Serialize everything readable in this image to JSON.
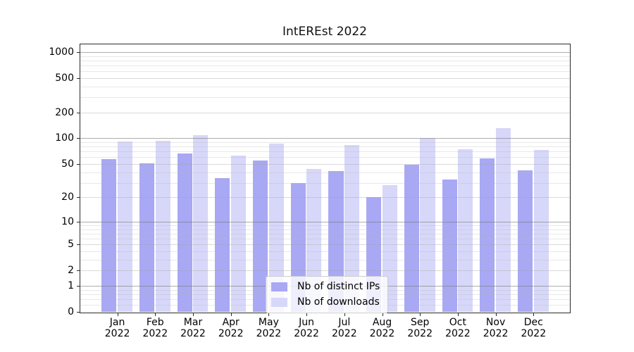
{
  "title": "IntEREst 2022",
  "chart_data": {
    "type": "bar",
    "title": "IntEREst 2022",
    "x_categories": [
      "Jan",
      "Feb",
      "Mar",
      "Apr",
      "May",
      "Jun",
      "Jul",
      "Aug",
      "Sep",
      "Oct",
      "Nov",
      "Dec"
    ],
    "x_year": "2022",
    "series": [
      {
        "name": "Nb of distinct IPs",
        "color": "#a8a8f4",
        "values": [
          57,
          51,
          67,
          34,
          55,
          30,
          41,
          20,
          49,
          33,
          58,
          42
        ]
      },
      {
        "name": "Nb of downloads",
        "color": "#d7d7f9",
        "values": [
          92,
          94,
          109,
          63,
          87,
          44,
          84,
          28,
          100,
          75,
          132,
          73
        ]
      }
    ],
    "y_scale": "log(1+x)",
    "ylim": [
      0,
      1250
    ],
    "y_ticks": [
      0,
      1,
      2,
      5,
      10,
      20,
      50,
      100,
      200,
      500,
      1000
    ],
    "y_major_gridlines": [
      1,
      10,
      100,
      1000
    ],
    "y_medium_gridlines": [
      2,
      5,
      20,
      50,
      200,
      500
    ],
    "y_minor_gridlines": [
      0.2,
      0.4,
      0.6,
      0.8,
      3,
      4,
      6,
      7,
      8,
      9,
      30,
      40,
      60,
      70,
      80,
      90,
      300,
      400,
      600,
      700,
      800,
      900
    ],
    "grid": true,
    "legend_position": "lower center"
  },
  "colors": {
    "background": "#ffffff",
    "spine": "#2b2b2b",
    "grid_major": "#adadad",
    "grid_medium": "#dbdbdb",
    "grid_minor": "#e8e8e8",
    "text": "#000000",
    "legend_border": "#cccccc",
    "legend_background": "rgba(255,255,255,0.8)"
  }
}
